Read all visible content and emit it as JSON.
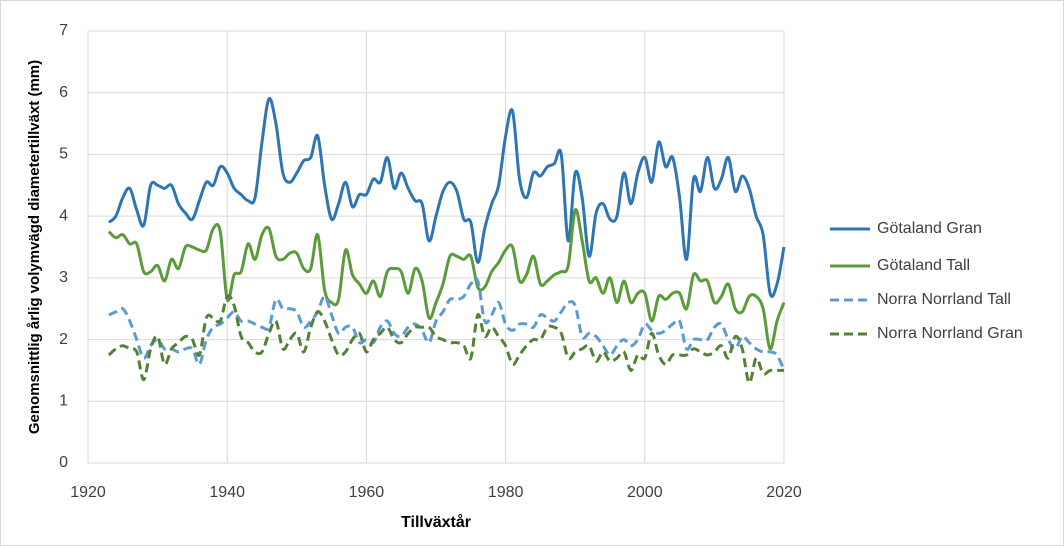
{
  "chart_data": {
    "type": "line",
    "x_label": "Tillväxtår",
    "y_label": "Genomsnittlig årlig volymvägd diametertillväxt (mm)",
    "x": [
      1923,
      1924,
      1925,
      1926,
      1927,
      1928,
      1929,
      1930,
      1931,
      1932,
      1933,
      1934,
      1935,
      1936,
      1937,
      1938,
      1939,
      1940,
      1941,
      1942,
      1943,
      1944,
      1945,
      1946,
      1947,
      1948,
      1949,
      1950,
      1951,
      1952,
      1953,
      1954,
      1955,
      1956,
      1957,
      1958,
      1959,
      1960,
      1961,
      1962,
      1963,
      1964,
      1965,
      1966,
      1967,
      1968,
      1969,
      1970,
      1971,
      1972,
      1973,
      1974,
      1975,
      1976,
      1977,
      1978,
      1979,
      1980,
      1981,
      1982,
      1983,
      1984,
      1985,
      1986,
      1987,
      1988,
      1989,
      1990,
      1991,
      1992,
      1993,
      1994,
      1995,
      1996,
      1997,
      1998,
      1999,
      2000,
      2001,
      2002,
      2003,
      2004,
      2005,
      2006,
      2007,
      2008,
      2009,
      2010,
      2011,
      2012,
      2013,
      2014,
      2015,
      2016,
      2017,
      2018,
      2019,
      2020
    ],
    "series": [
      {
        "name": "Götaland Gran",
        "color": "#2e75b6",
        "dashed": false,
        "values": [
          3.9,
          4.0,
          4.3,
          4.45,
          4.1,
          3.85,
          4.5,
          4.5,
          4.45,
          4.5,
          4.2,
          4.05,
          3.95,
          4.25,
          4.55,
          4.5,
          4.8,
          4.7,
          4.45,
          4.35,
          4.25,
          4.3,
          5.2,
          5.9,
          5.5,
          4.7,
          4.55,
          4.7,
          4.9,
          4.95,
          5.3,
          4.5,
          3.95,
          4.2,
          4.55,
          4.15,
          4.35,
          4.35,
          4.6,
          4.55,
          4.95,
          4.45,
          4.7,
          4.45,
          4.25,
          4.2,
          3.6,
          4.0,
          4.4,
          4.55,
          4.4,
          3.95,
          3.9,
          3.25,
          3.8,
          4.2,
          4.5,
          5.3,
          5.7,
          4.6,
          4.3,
          4.7,
          4.65,
          4.8,
          4.85,
          5.0,
          3.6,
          4.7,
          4.3,
          3.35,
          4.05,
          4.2,
          3.95,
          4.0,
          4.7,
          4.2,
          4.7,
          4.95,
          4.55,
          5.2,
          4.8,
          4.95,
          4.3,
          3.3,
          4.6,
          4.4,
          4.95,
          4.45,
          4.6,
          4.95,
          4.4,
          4.65,
          4.45,
          4.0,
          3.7,
          2.75,
          2.9,
          3.5
        ]
      },
      {
        "name": "Götaland Tall",
        "color": "#5b9b3a",
        "dashed": false,
        "values": [
          3.75,
          3.65,
          3.7,
          3.55,
          3.55,
          3.1,
          3.1,
          3.2,
          2.95,
          3.3,
          3.15,
          3.5,
          3.5,
          3.45,
          3.45,
          3.8,
          3.75,
          2.65,
          3.05,
          3.1,
          3.55,
          3.3,
          3.7,
          3.8,
          3.35,
          3.3,
          3.4,
          3.4,
          3.15,
          3.15,
          3.7,
          2.8,
          2.6,
          2.65,
          3.45,
          3.05,
          2.9,
          2.75,
          2.95,
          2.7,
          3.1,
          3.15,
          3.1,
          2.75,
          3.15,
          2.95,
          2.35,
          2.6,
          2.9,
          3.35,
          3.35,
          3.3,
          3.35,
          2.85,
          2.85,
          3.1,
          3.25,
          3.45,
          3.5,
          2.95,
          3.05,
          3.35,
          2.9,
          2.95,
          3.05,
          3.1,
          3.2,
          4.1,
          3.6,
          2.95,
          3.0,
          2.75,
          3.0,
          2.6,
          2.95,
          2.6,
          2.75,
          2.75,
          2.3,
          2.7,
          2.65,
          2.75,
          2.75,
          2.5,
          3.05,
          2.95,
          2.95,
          2.6,
          2.7,
          2.9,
          2.5,
          2.45,
          2.7,
          2.7,
          2.5,
          1.85,
          2.3,
          2.6
        ]
      },
      {
        "name": "Norra Norrland Tall",
        "color": "#5b9bd5",
        "dashed": true,
        "values": [
          2.4,
          2.45,
          2.5,
          2.3,
          2.0,
          1.7,
          1.9,
          2.0,
          1.85,
          1.85,
          1.8,
          1.85,
          1.85,
          1.6,
          2.0,
          2.2,
          2.25,
          2.35,
          2.45,
          2.3,
          2.3,
          2.25,
          2.2,
          2.2,
          2.65,
          2.5,
          2.5,
          2.45,
          2.2,
          2.3,
          2.45,
          2.7,
          2.4,
          2.1,
          2.2,
          2.2,
          1.95,
          2.0,
          1.95,
          2.2,
          2.3,
          2.1,
          2.05,
          2.2,
          2.25,
          2.15,
          1.95,
          2.3,
          2.45,
          2.65,
          2.65,
          2.7,
          2.9,
          2.95,
          2.3,
          2.4,
          2.6,
          2.25,
          2.15,
          2.25,
          2.25,
          2.2,
          2.4,
          2.35,
          2.3,
          2.45,
          2.6,
          2.55,
          2.05,
          2.1,
          2.05,
          1.9,
          1.75,
          1.9,
          2.0,
          1.9,
          2.0,
          2.25,
          2.15,
          2.1,
          2.15,
          2.25,
          2.3,
          1.85,
          2.0,
          2.0,
          2.0,
          2.2,
          2.25,
          2.0,
          1.85,
          2.05,
          1.95,
          1.85,
          1.8,
          1.8,
          1.75,
          1.5
        ]
      },
      {
        "name": "Norra Norrland Gran",
        "color": "#548235",
        "dashed": true,
        "values": [
          1.75,
          1.85,
          1.9,
          1.85,
          1.8,
          1.35,
          1.85,
          2.05,
          1.6,
          1.85,
          1.95,
          2.05,
          2.0,
          1.75,
          2.35,
          2.35,
          2.3,
          2.7,
          2.55,
          2.05,
          1.95,
          1.8,
          1.8,
          2.1,
          2.3,
          1.85,
          2.0,
          2.1,
          1.8,
          2.2,
          2.45,
          2.3,
          2.0,
          1.75,
          1.8,
          2.0,
          2.1,
          1.8,
          2.0,
          2.1,
          2.2,
          2.0,
          1.95,
          2.1,
          2.2,
          2.2,
          2.2,
          2.05,
          2.0,
          1.95,
          1.95,
          1.9,
          1.7,
          2.4,
          2.05,
          2.2,
          2.05,
          1.9,
          1.6,
          1.75,
          1.9,
          2.0,
          2.0,
          2.2,
          2.2,
          2.1,
          1.7,
          1.8,
          1.85,
          1.9,
          1.65,
          1.8,
          1.65,
          1.7,
          1.8,
          1.5,
          1.75,
          1.7,
          2.1,
          1.75,
          1.6,
          1.75,
          1.75,
          1.75,
          1.85,
          1.8,
          1.75,
          1.8,
          1.9,
          1.7,
          2.05,
          1.85,
          1.3,
          1.7,
          1.45,
          1.5,
          1.5,
          1.5
        ]
      }
    ],
    "xlim": [
      1920,
      2020
    ],
    "xticks": [
      1920,
      1940,
      1960,
      1980,
      2000,
      2020
    ],
    "ylim": [
      0,
      7
    ],
    "yticks": [
      0,
      1,
      2,
      3,
      4,
      5,
      6,
      7
    ],
    "grid": true,
    "legend": "right"
  }
}
